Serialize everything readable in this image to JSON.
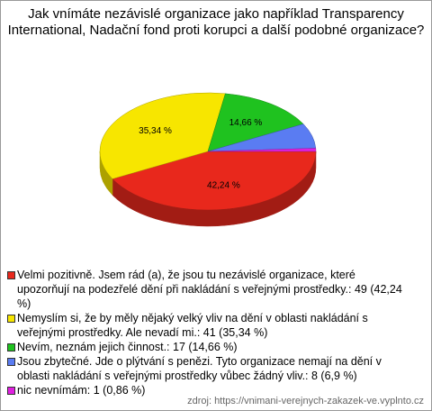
{
  "chart_data": {
    "type": "pie",
    "title": "Jak vnímáte nezávislé organizace jako například Transparency International, Nadační fond proti korupci a další podobné organizace?",
    "categories": [
      "Velmi pozitivně. Jsem rád (a), že jsou tu nezávislé organizace, které upozorňují na podezřelé dění při nakládání s veřejnými prostředky.: 49 (42,24 %)",
      "Nemyslím si, že by měly nějaký velký vliv na dění v oblasti nakládání s veřejnými prostředky. Ale nevadí mi.: 41 (35,34 %)",
      "Nevím, neznám jejich činnost.: 17 (14,66 %)",
      "Jsou zbytečné. Jde o plýtvání s penězi. Tyto organizace nemají na dění v oblasti nakládání s veřejnými prostředky vůbec žádný vliv.: 8 (6,9 %)",
      "nic nevnímám: 1 (0,86 %)"
    ],
    "values": [
      42.24,
      35.34,
      14.66,
      6.9,
      0.86
    ],
    "value_labels": [
      "42,24 %",
      "35,34 %",
      "14,66 %",
      null,
      null
    ],
    "colors": [
      "#e8281c",
      "#f7e600",
      "#1fc21f",
      "#5a7cf2",
      "#e020e0"
    ],
    "source": "zdroj: https://vnimani-verejnych-zakazek-ve.vyplnto.cz"
  }
}
